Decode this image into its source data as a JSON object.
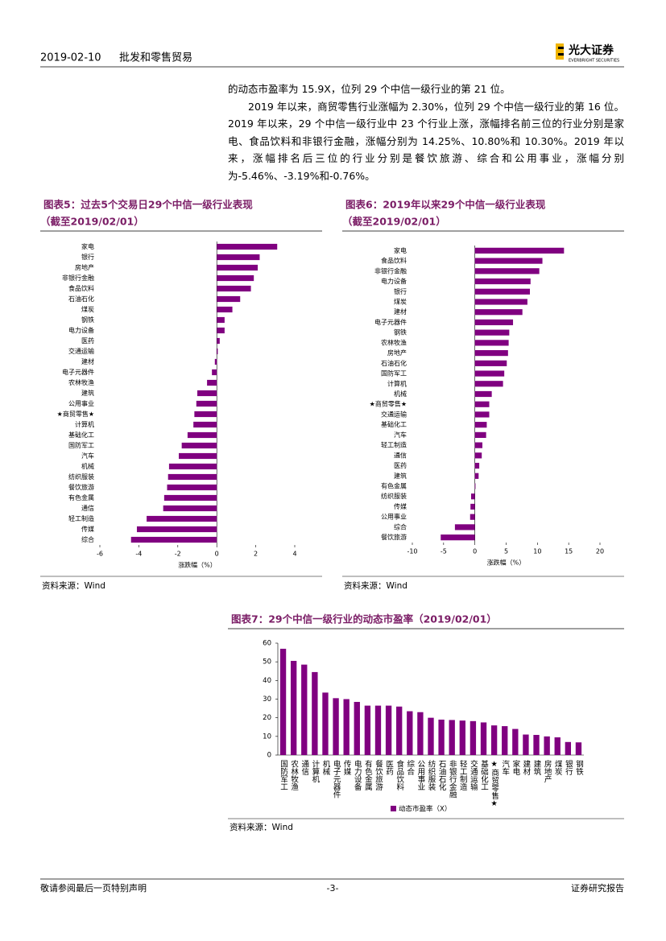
{
  "header": {
    "date": "2019-02-10",
    "section": "批发和零售贸易",
    "logo_name": "光大证券",
    "logo_en": "EVERBRIGHT SECURITIES"
  },
  "paragraphs": [
    "的动态市盈率为 15.9X，位列 29 个中信一级行业的第 21 位。",
    "2019 年以来，商贸零售行业涨幅为 2.30%，位列 29 个中信一级行业的第 16 位。2019 年以来，29 个中信一级行业中 23 个行业上涨，涨幅排名前三位的行业分别是家电、食品饮料和非银行金融，涨幅分别为 14.25%、10.80%和 10.30%。2019 年以来，涨幅排名后三位的行业分别是餐饮旅游、综合和公用事业，涨幅分别为-5.46%、-3.19%和-0.76%。"
  ],
  "chart_data": [
    {
      "type": "hbar",
      "title": "图表5：过去5个交易日29个中信一级行业表现",
      "subtitle": "（截至2019/02/01）",
      "categories": [
        "家电",
        "银行",
        "房地产",
        "非银行金融",
        "食品饮料",
        "石油石化",
        "煤炭",
        "钢铁",
        "电力设备",
        "医药",
        "交通运输",
        "建材",
        "电子元器件",
        "农林牧渔",
        "建筑",
        "公用事业",
        "★商贸零售★",
        "计算机",
        "基础化工",
        "国防军工",
        "汽车",
        "机械",
        "纺织服装",
        "餐饮旅游",
        "有色金属",
        "通信",
        "轻工制造",
        "传媒",
        "综合"
      ],
      "values": [
        3.1,
        2.2,
        2.1,
        1.9,
        1.75,
        1.2,
        0.8,
        0.4,
        0.4,
        0.15,
        0.05,
        -0.1,
        -0.25,
        -0.5,
        -1.0,
        -1.05,
        -1.15,
        -1.2,
        -1.5,
        -1.8,
        -1.95,
        -2.45,
        -2.5,
        -2.55,
        -2.7,
        -2.75,
        -3.6,
        -4.1,
        -4.4
      ],
      "color": "#800080",
      "xlabel": "涨跌幅（%）",
      "xlim": [
        -6,
        4
      ],
      "xticks": [
        -6,
        -4,
        -2,
        0,
        2,
        4
      ],
      "source": "资料来源：Wind"
    },
    {
      "type": "hbar",
      "title": "图表6：2019年以来29个中信一级行业表现",
      "subtitle": "（截至2019/02/01）",
      "categories": [
        "家电",
        "食品饮料",
        "非银行金融",
        "电力设备",
        "银行",
        "煤炭",
        "建材",
        "电子元器件",
        "钢铁",
        "农林牧渔",
        "房地产",
        "石油石化",
        "国防军工",
        "计算机",
        "机械",
        "★商贸零售★",
        "交通运输",
        "基础化工",
        "汽车",
        "轻工制造",
        "通信",
        "医药",
        "建筑",
        "有色金属",
        "纺织服装",
        "传媒",
        "公用事业",
        "综合",
        "餐饮旅游"
      ],
      "values": [
        14.25,
        10.8,
        10.3,
        8.9,
        8.8,
        8.4,
        7.6,
        6.1,
        5.5,
        5.4,
        5.3,
        5.1,
        4.7,
        4.5,
        2.7,
        2.3,
        2.3,
        1.9,
        1.8,
        1.2,
        1.1,
        0.7,
        0.6,
        0.1,
        -0.6,
        -0.7,
        -0.76,
        -3.19,
        -5.46
      ],
      "color": "#800080",
      "xlabel": "涨跌幅（%）",
      "xlim": [
        -10,
        20
      ],
      "xticks": [
        -10,
        -5,
        0,
        5,
        10,
        15,
        20
      ],
      "source": "资料来源：Wind"
    },
    {
      "type": "bar",
      "title": "图表7：29个中信一级行业的动态市盈率（2019/02/01）",
      "categories": [
        "国防军工",
        "农林牧渔",
        "通信",
        "计算机",
        "机械",
        "电子元器件",
        "传媒",
        "电力设备",
        "有色金属",
        "餐饮旅游",
        "医药",
        "食品饮料",
        "综合",
        "公用事业",
        "纺织服装",
        "石油石化",
        "非银行金融",
        "轻工制造",
        "交通运输",
        "基础化工",
        "★商贸零售★",
        "汽车",
        "家电",
        "建材",
        "建筑",
        "房地产",
        "煤炭",
        "银行",
        "钢铁"
      ],
      "series": [
        {
          "name": "动态市盈率（X）",
          "color": "#800080",
          "values": [
            57,
            50.5,
            48.5,
            44.5,
            33.5,
            30.5,
            30,
            28.5,
            26.5,
            26.5,
            26.5,
            26,
            23.5,
            23,
            20,
            19,
            18.8,
            18.5,
            18.2,
            17.5,
            15.9,
            15.5,
            14,
            11,
            10.8,
            10,
            9.5,
            7,
            6.8
          ]
        }
      ],
      "ylim": [
        0,
        60
      ],
      "yticks": [
        0,
        10,
        20,
        30,
        40,
        50,
        60
      ],
      "legend": "bottom",
      "source": "资料来源：Wind"
    }
  ],
  "footer": {
    "disclaimer": "敬请参阅最后一页特别声明",
    "page": "-3-",
    "report_type": "证券研究报告"
  }
}
